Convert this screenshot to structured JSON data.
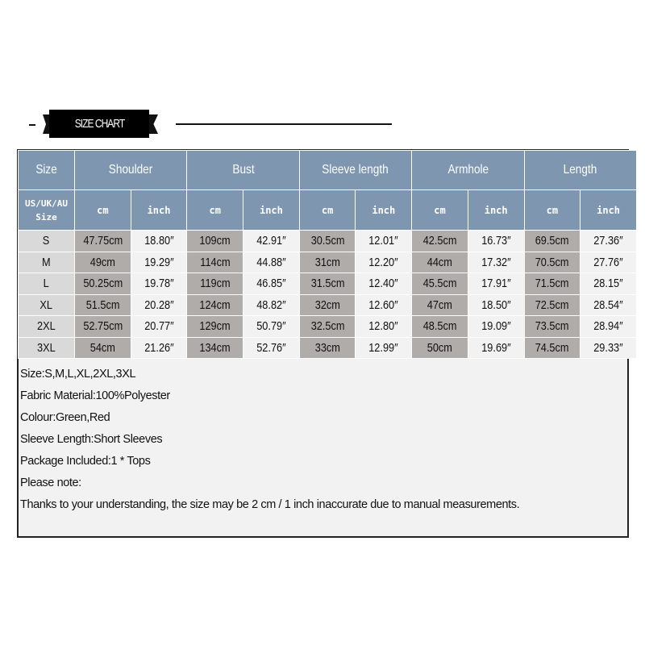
{
  "banner": {
    "title": "SIZE CHART"
  },
  "table": {
    "headers": [
      "Size",
      "Shoulder",
      "Bust",
      "Sleeve length",
      "Armhole",
      "Length"
    ],
    "size_subheader": "US/UK/AU Size",
    "unit_cm": "cm",
    "unit_inch": "inch",
    "rows": [
      [
        "S",
        "47.75cm",
        "18.80″",
        "109cm",
        "42.91″",
        "30.5cm",
        "12.01″",
        "42.5cm",
        "16.73″",
        "69.5cm",
        "27.36″"
      ],
      [
        "M",
        "49cm",
        "19.29″",
        "114cm",
        "44.88″",
        "31cm",
        "12.20″",
        "44cm",
        "17.32″",
        "70.5cm",
        "27.76″"
      ],
      [
        "L",
        "50.25cm",
        "19.78″",
        "119cm",
        "46.85″",
        "31.5cm",
        "12.40″",
        "45.5cm",
        "17.91″",
        "71.5cm",
        "28.15″"
      ],
      [
        "XL",
        "51.5cm",
        "20.28″",
        "124cm",
        "48.82″",
        "32cm",
        "12.60″",
        "47cm",
        "18.50″",
        "72.5cm",
        "28.54″"
      ],
      [
        "2XL",
        "52.75cm",
        "20.77″",
        "129cm",
        "50.79″",
        "32.5cm",
        "12.80″",
        "48.5cm",
        "19.09″",
        "73.5cm",
        "28.94″"
      ],
      [
        "3XL",
        "54cm",
        "21.26″",
        "134cm",
        "52.76″",
        "33cm",
        "12.99″",
        "50cm",
        "19.69″",
        "74.5cm",
        "29.33″"
      ]
    ]
  },
  "notes": [
    "Size:S,M,L,XL,2XL,3XL",
    "Fabric Material:100%Polyester",
    "Colour:Green,Red",
    "Sleeve Length:Short Sleeves",
    "Package Included:1 * Tops",
    "Please note:",
    "Thanks to your understanding, the size may be 2 cm / 1 inch inaccurate due to manual measurements."
  ],
  "colors": {
    "header": "#7f96b0",
    "cm_cell": "#b0aca9",
    "inch_cell": "#f2f2f2",
    "size_cell": "#d9d9d9"
  }
}
